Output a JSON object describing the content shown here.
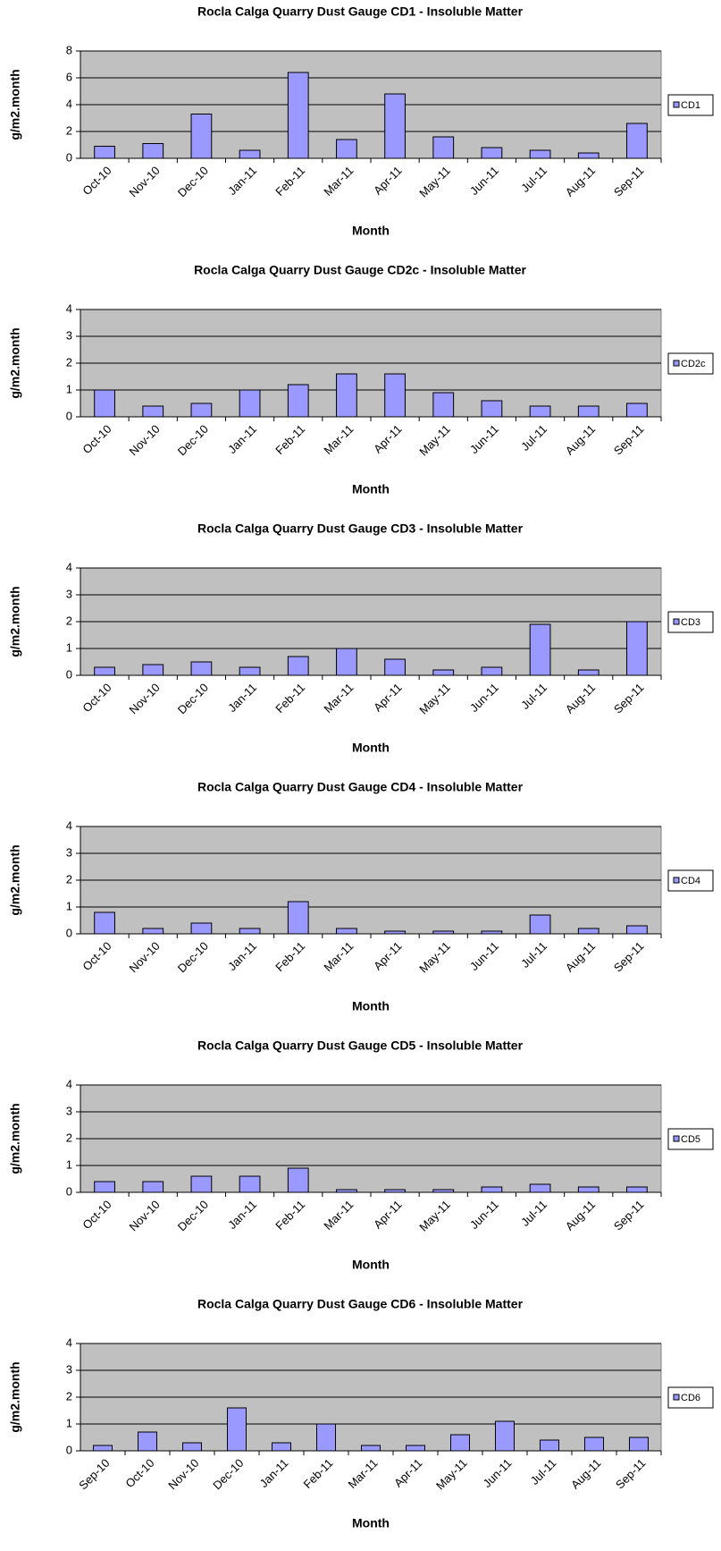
{
  "chart_data": [
    {
      "type": "bar",
      "title": "Rocla Calga Quarry Dust Gauge CD1 - Insoluble Matter",
      "x_label": "Month",
      "y_label": "g/m2.month",
      "categories": [
        "Oct-10",
        "Nov-10",
        "Dec-10",
        "Jan-11",
        "Feb-11",
        "Mar-11",
        "Apr-11",
        "May-11",
        "Jun-11",
        "Jul-11",
        "Aug-11",
        "Sep-11"
      ],
      "series": [
        {
          "name": "CD1",
          "color": "#9999ff",
          "values": [
            0.9,
            1.1,
            3.3,
            0.6,
            6.4,
            1.4,
            4.8,
            1.6,
            0.8,
            0.6,
            0.4,
            2.6
          ]
        }
      ],
      "ylim": [
        0,
        8
      ],
      "yticks": [
        0,
        2,
        4,
        6,
        8
      ],
      "grid": true
    },
    {
      "type": "bar",
      "title": "Rocla Calga Quarry Dust Gauge CD2c - Insoluble Matter",
      "x_label": "Month",
      "y_label": "g/m2.month",
      "categories": [
        "Oct-10",
        "Nov-10",
        "Dec-10",
        "Jan-11",
        "Feb-11",
        "Mar-11",
        "Apr-11",
        "May-11",
        "Jun-11",
        "Jul-11",
        "Aug-11",
        "Sep-11"
      ],
      "series": [
        {
          "name": "CD2c",
          "color": "#9999ff",
          "values": [
            1.0,
            0.4,
            0.5,
            1.0,
            1.2,
            1.6,
            1.6,
            0.9,
            0.6,
            0.4,
            0.4,
            0.5
          ]
        }
      ],
      "ylim": [
        0,
        4
      ],
      "yticks": [
        0,
        1,
        2,
        3,
        4
      ],
      "grid": true
    },
    {
      "type": "bar",
      "title": "Rocla Calga Quarry Dust Gauge CD3 - Insoluble Matter",
      "x_label": "Month",
      "y_label": "g/m2.month",
      "categories": [
        "Oct-10",
        "Nov-10",
        "Dec-10",
        "Jan-11",
        "Feb-11",
        "Mar-11",
        "Apr-11",
        "May-11",
        "Jun-11",
        "Jul-11",
        "Aug-11",
        "Sep-11"
      ],
      "series": [
        {
          "name": "CD3",
          "color": "#9999ff",
          "values": [
            0.3,
            0.4,
            0.5,
            0.3,
            0.7,
            1.0,
            0.6,
            0.2,
            0.3,
            1.9,
            0.2,
            2.0
          ]
        }
      ],
      "ylim": [
        0,
        4
      ],
      "yticks": [
        0,
        1,
        2,
        3,
        4
      ],
      "grid": true
    },
    {
      "type": "bar",
      "title": "Rocla Calga Quarry Dust Gauge CD4 - Insoluble Matter",
      "x_label": "Month",
      "y_label": "g/m2.month",
      "categories": [
        "Oct-10",
        "Nov-10",
        "Dec-10",
        "Jan-11",
        "Feb-11",
        "Mar-11",
        "Apr-11",
        "May-11",
        "Jun-11",
        "Jul-11",
        "Aug-11",
        "Sep-11"
      ],
      "series": [
        {
          "name": "CD4",
          "color": "#9999ff",
          "values": [
            0.8,
            0.2,
            0.4,
            0.2,
            1.2,
            0.2,
            0.1,
            0.1,
            0.1,
            0.7,
            0.2,
            0.3
          ]
        }
      ],
      "ylim": [
        0,
        4
      ],
      "yticks": [
        0,
        1,
        2,
        3,
        4
      ],
      "grid": true
    },
    {
      "type": "bar",
      "title": "Rocla Calga Quarry Dust Gauge CD5 - Insoluble Matter",
      "x_label": "Month",
      "y_label": "g/m2.month",
      "categories": [
        "Oct-10",
        "Nov-10",
        "Dec-10",
        "Jan-11",
        "Feb-11",
        "Mar-11",
        "Apr-11",
        "May-11",
        "Jun-11",
        "Jul-11",
        "Aug-11",
        "Sep-11"
      ],
      "series": [
        {
          "name": "CD5",
          "color": "#9999ff",
          "values": [
            0.4,
            0.4,
            0.6,
            0.6,
            0.9,
            0.1,
            0.1,
            0.1,
            0.2,
            0.3,
            0.2,
            0.2
          ]
        }
      ],
      "ylim": [
        0,
        4
      ],
      "yticks": [
        0,
        1,
        2,
        3,
        4
      ],
      "grid": true
    },
    {
      "type": "bar",
      "title": "Rocla Calga Quarry Dust Gauge CD6 - Insoluble Matter",
      "x_label": "Month",
      "y_label": "g/m2.month",
      "categories": [
        "Sep-10",
        "Oct-10",
        "Nov-10",
        "Dec-10",
        "Jan-11",
        "Feb-11",
        "Mar-11",
        "Apr-11",
        "May-11",
        "Jun-11",
        "Jul-11",
        "Aug-11",
        "Sep-11"
      ],
      "series": [
        {
          "name": "CD6",
          "color": "#9999ff",
          "values": [
            0.2,
            0.7,
            0.3,
            1.6,
            0.3,
            1.0,
            0.2,
            0.2,
            0.6,
            1.1,
            0.4,
            0.5,
            0.5
          ]
        }
      ],
      "ylim": [
        0,
        4
      ],
      "yticks": [
        0,
        1,
        2,
        3,
        4
      ],
      "grid": true
    }
  ]
}
